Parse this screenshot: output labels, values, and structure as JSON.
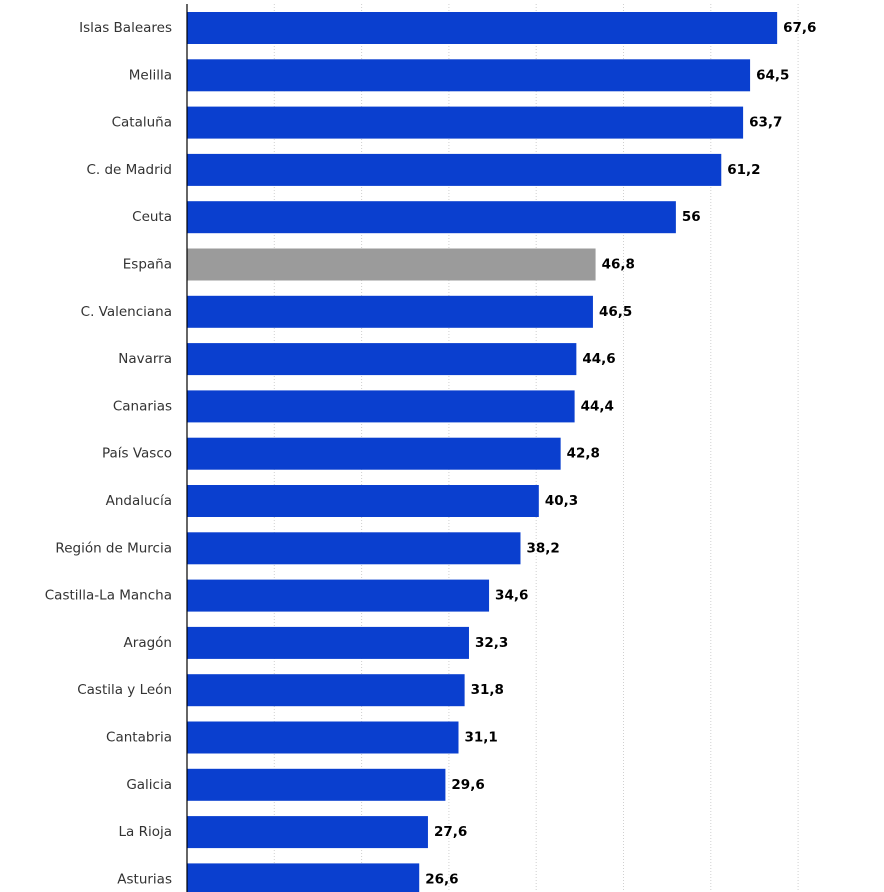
{
  "chart_data": {
    "type": "bar",
    "orientation": "horizontal",
    "categories": [
      "Islas Baleares",
      "Melilla",
      "Cataluña",
      "C. de Madrid",
      "Ceuta",
      "España",
      "C. Valenciana",
      "Navarra",
      "Canarias",
      "País Vasco",
      "Andalucía",
      "Región de Murcia",
      "Castilla-La Mancha",
      "Aragón",
      "Castila y León",
      "Cantabria",
      "Galicia",
      "La Rioja",
      "Asturias"
    ],
    "values": [
      67.6,
      64.5,
      63.7,
      61.2,
      56,
      46.8,
      46.5,
      44.6,
      44.4,
      42.8,
      40.3,
      38.2,
      34.6,
      32.3,
      31.8,
      31.1,
      29.6,
      27.6,
      26.6
    ],
    "value_labels": [
      "67,6",
      "64,5",
      "63,7",
      "61,2",
      "56",
      "46,8",
      "46,5",
      "44,6",
      "44,4",
      "42,8",
      "40,3",
      "38,2",
      "34,6",
      "32,3",
      "31,8",
      "31,1",
      "29,6",
      "27,6",
      "26,6"
    ],
    "highlight_category": "España",
    "title": "",
    "xlabel": "",
    "ylabel": "",
    "xlim": [
      0,
      80
    ],
    "grid": true,
    "grid_style": "dotted-vertical",
    "legend": "none",
    "colors": {
      "bar": "#0a3fcf",
      "highlight": "#9b9b9b",
      "grid": "#d0d0d0",
      "axis": "#000000",
      "category_text": "#333333",
      "value_text": "#000000"
    }
  }
}
